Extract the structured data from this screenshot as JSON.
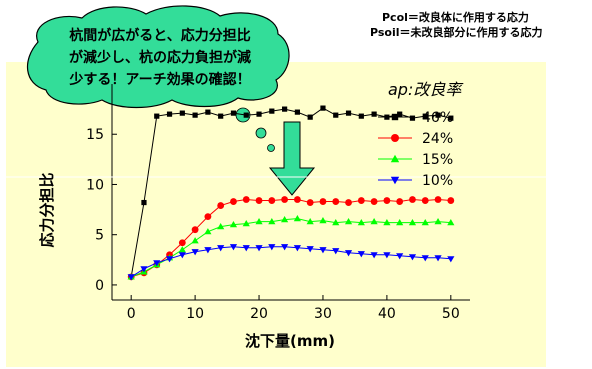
{
  "notes": {
    "pcol": "Pcol＝改良体に作用する応力",
    "psoil": "Psoil＝未改良部分に作用する応力"
  },
  "callout": {
    "lines": [
      "杭間が広がると、応力分担比",
      "が減少し、杭の応力負担が減",
      "少する！アーチ効果の確認！"
    ]
  },
  "chart_data": {
    "type": "line",
    "xlabel": "沈下量(mm)",
    "ylabel": "応力分担比",
    "xlim": [
      -3,
      53
    ],
    "ylim": [
      -1.5,
      20
    ],
    "xticks": [
      0,
      10,
      20,
      30,
      40,
      50
    ],
    "yticks": [
      0,
      5,
      10,
      15
    ],
    "legend_title": "ap:改良率",
    "legend_position": "top-right",
    "grid": false,
    "series": [
      {
        "name": "46%",
        "color": "#000000",
        "marker": "square",
        "x": [
          0,
          2,
          4,
          6,
          8,
          10,
          12,
          14,
          16,
          18,
          20,
          22,
          24,
          26,
          28,
          30,
          32,
          34,
          36,
          38,
          40,
          42,
          44,
          46,
          48,
          50
        ],
        "y": [
          0.8,
          8.2,
          16.8,
          17.0,
          17.1,
          16.9,
          17.2,
          16.8,
          17.1,
          16.9,
          17.0,
          17.3,
          17.5,
          17.2,
          16.7,
          17.6,
          16.9,
          17.1,
          16.8,
          17.0,
          16.7,
          17.0,
          16.6,
          16.8,
          16.9,
          16.6
        ]
      },
      {
        "name": "24%",
        "color": "#ff0000",
        "marker": "circle",
        "x": [
          0,
          2,
          4,
          6,
          8,
          10,
          12,
          14,
          16,
          18,
          20,
          22,
          24,
          26,
          28,
          30,
          32,
          34,
          36,
          38,
          40,
          42,
          44,
          46,
          48,
          50
        ],
        "y": [
          0.8,
          1.2,
          2.0,
          3.0,
          4.2,
          5.5,
          6.8,
          7.9,
          8.3,
          8.5,
          8.4,
          8.4,
          8.5,
          8.5,
          8.2,
          8.3,
          8.3,
          8.2,
          8.4,
          8.3,
          8.4,
          8.3,
          8.5,
          8.4,
          8.5,
          8.4
        ]
      },
      {
        "name": "15%",
        "color": "#00ff00",
        "marker": "triangle-up",
        "x": [
          0,
          2,
          4,
          6,
          8,
          10,
          12,
          14,
          16,
          18,
          20,
          22,
          24,
          26,
          28,
          30,
          32,
          34,
          36,
          38,
          40,
          42,
          44,
          46,
          48,
          50
        ],
        "y": [
          0.8,
          1.3,
          2.0,
          2.7,
          3.5,
          4.4,
          5.3,
          5.8,
          6.0,
          6.1,
          6.3,
          6.3,
          6.5,
          6.6,
          6.3,
          6.4,
          6.2,
          6.3,
          6.2,
          6.3,
          6.2,
          6.2,
          6.2,
          6.2,
          6.3,
          6.2
        ]
      },
      {
        "name": "10%",
        "color": "#0000ff",
        "marker": "triangle-down",
        "x": [
          0,
          2,
          4,
          6,
          8,
          10,
          12,
          14,
          16,
          18,
          20,
          22,
          24,
          26,
          28,
          30,
          32,
          34,
          36,
          38,
          40,
          42,
          44,
          46,
          48,
          50
        ],
        "y": [
          0.8,
          1.6,
          2.2,
          2.6,
          3.0,
          3.3,
          3.5,
          3.7,
          3.8,
          3.7,
          3.7,
          3.8,
          3.8,
          3.7,
          3.6,
          3.5,
          3.4,
          3.2,
          3.1,
          3.0,
          3.0,
          2.9,
          2.8,
          2.7,
          2.7,
          2.6
        ]
      }
    ]
  }
}
